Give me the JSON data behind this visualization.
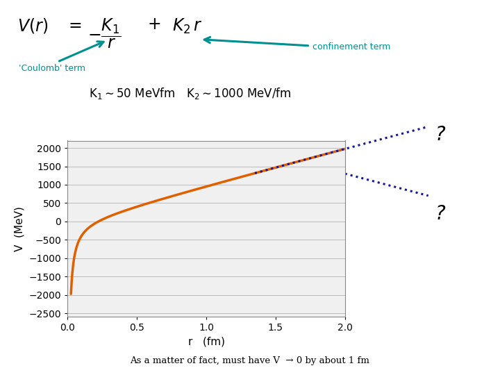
{
  "K1": 50,
  "K2": 1000,
  "r_start": 0.025,
  "r_end": 2.0,
  "plot_xlim": [
    0,
    2.0
  ],
  "plot_ylim": [
    -2600,
    2200
  ],
  "orange_color": "#E06000",
  "dotted_color": "#1515A0",
  "teal_color": "#009090",
  "xlabel": "r   (fm)",
  "ylabel": "V  (MeV)",
  "yticks": [
    -2500,
    -2000,
    -1500,
    -1000,
    -500,
    0,
    500,
    1000,
    1500,
    2000
  ],
  "xticks": [
    0,
    0.5,
    1,
    1.5,
    2
  ],
  "bg_color": "#ffffff",
  "plot_bg_color": "#f0f0f0",
  "coulomb_label": "'Coulomb' term",
  "confinement_label": "confinement term",
  "bottom_text": "As a matter of fact, must have V  → 0 by about 1 fm",
  "q1": "?",
  "q2": "?"
}
